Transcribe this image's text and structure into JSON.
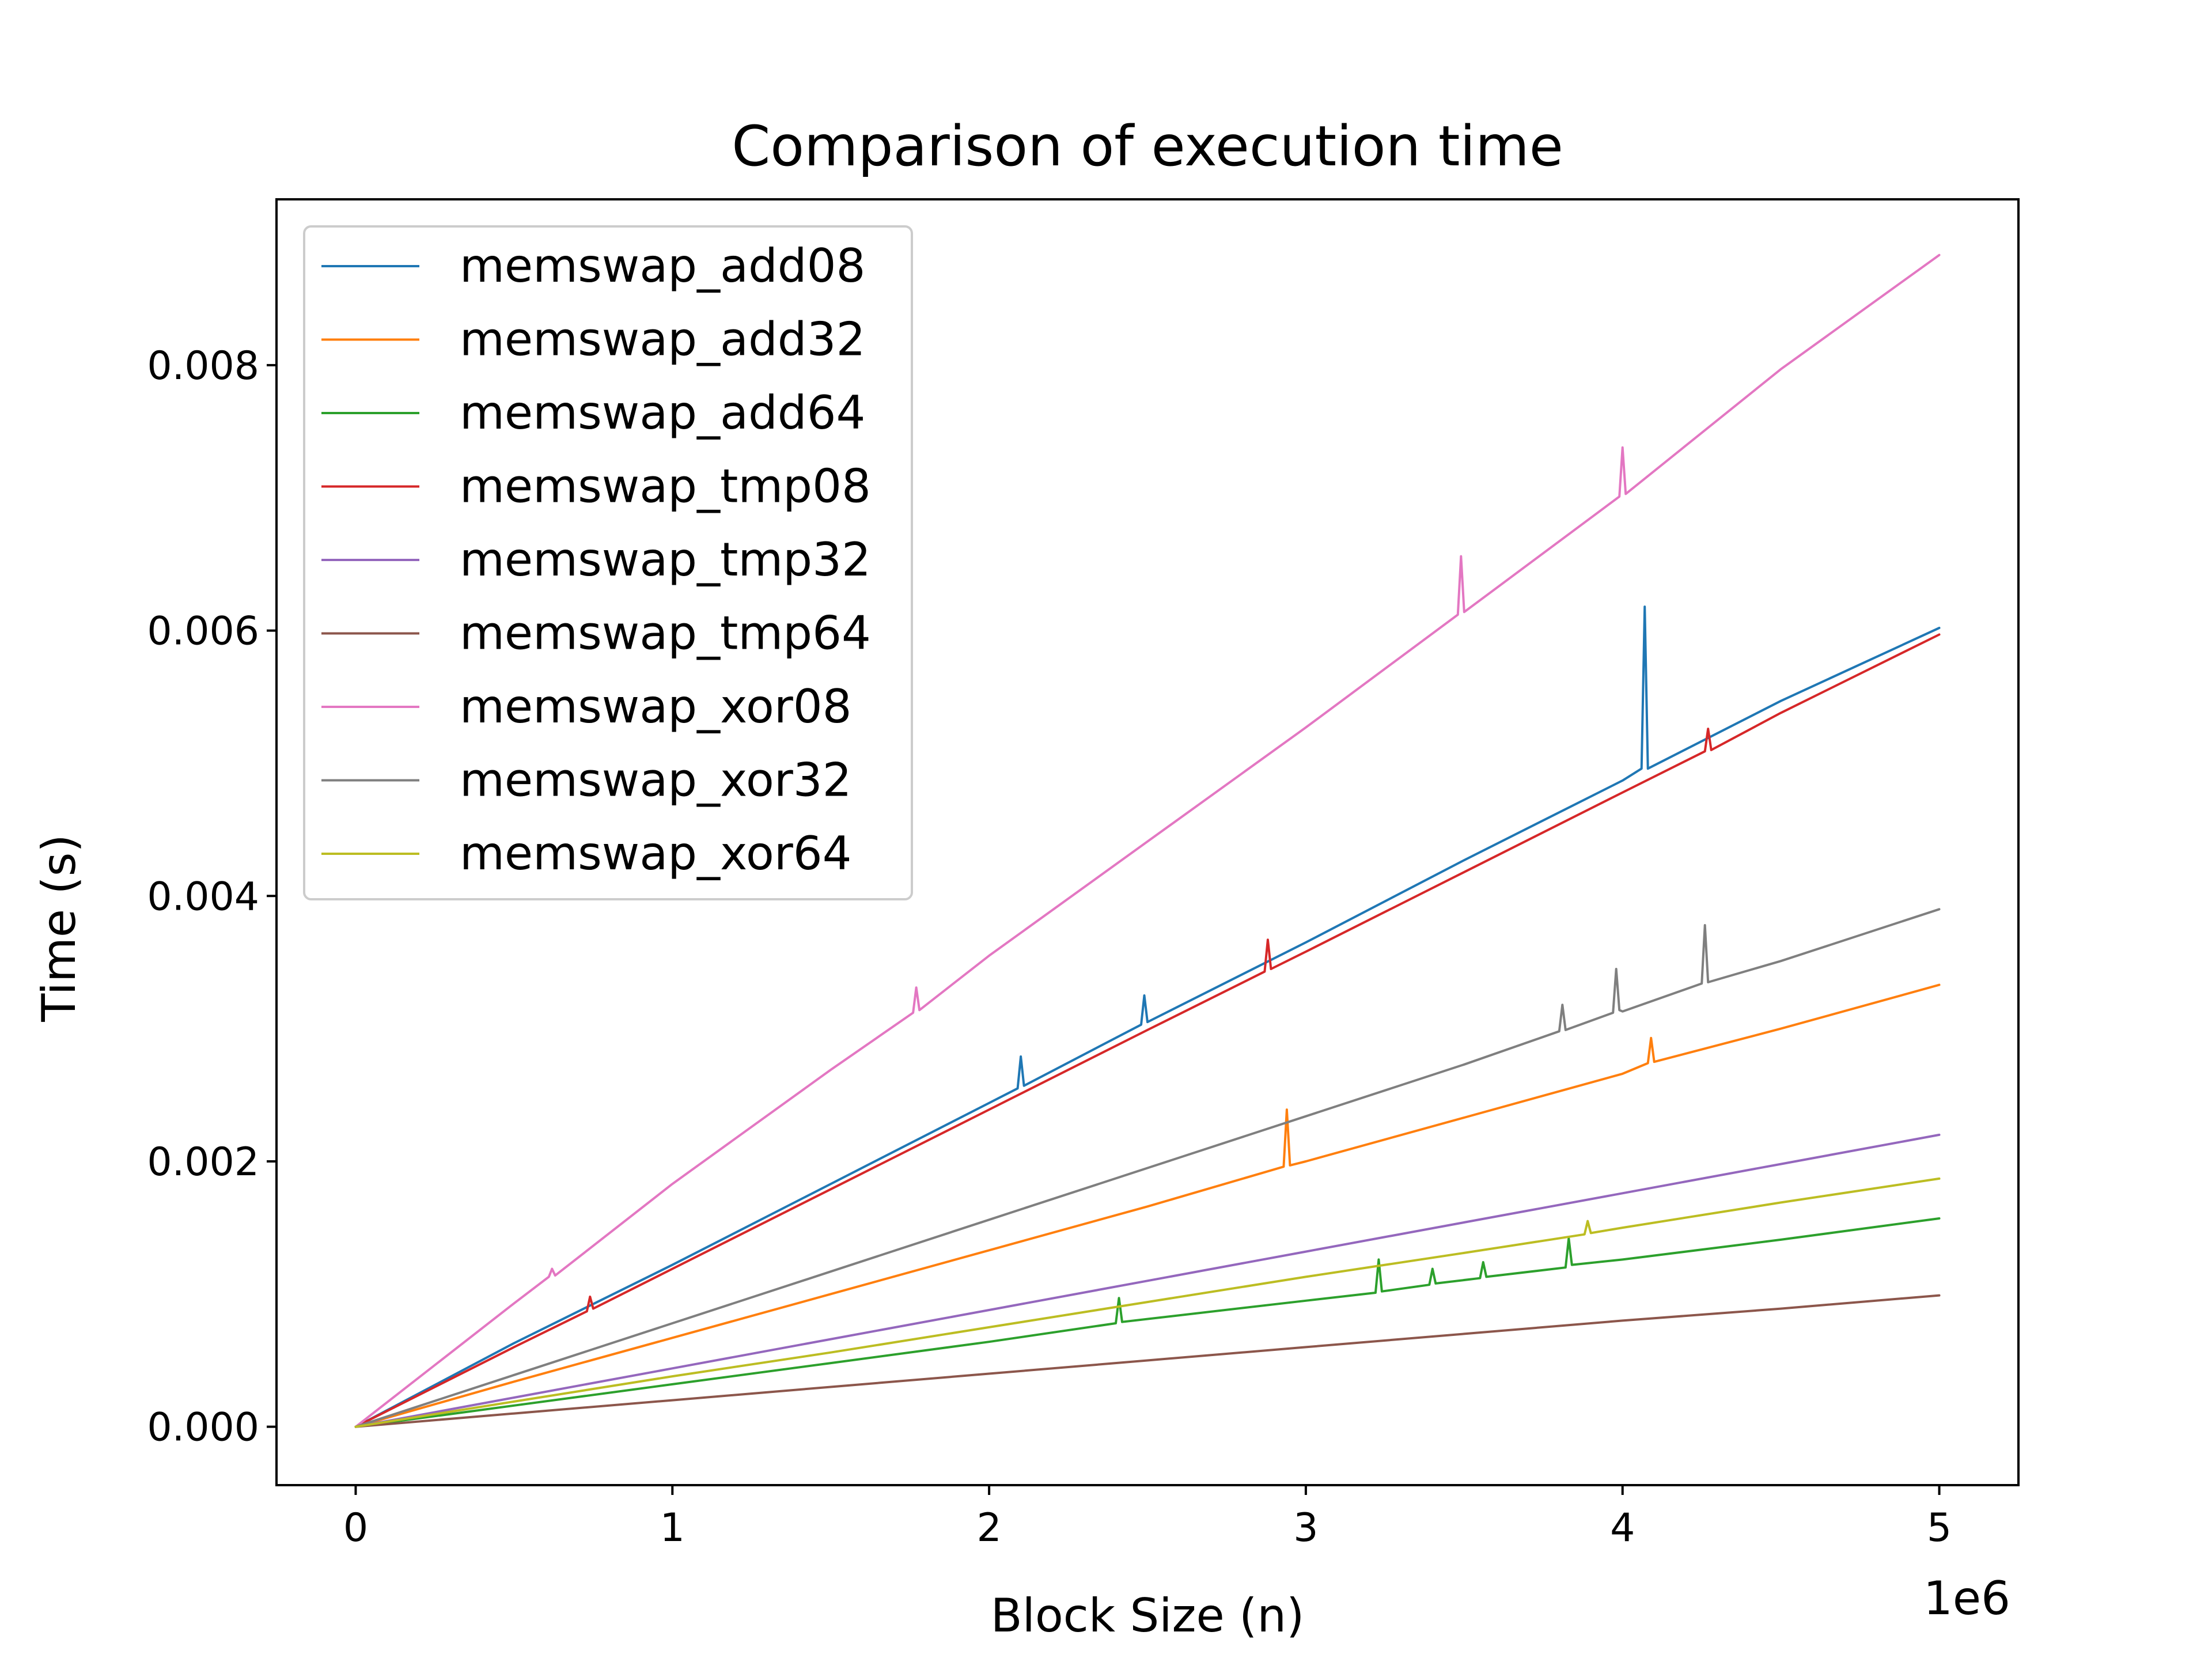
{
  "chart_data": {
    "type": "line",
    "title": "Comparison of execution time",
    "xlabel": "Block Size (n)",
    "ylabel": "Time (s)",
    "x_offset_label": "1e6",
    "xlim": [
      -250000,
      5250000
    ],
    "ylim": [
      -0.00044,
      0.00925
    ],
    "x_ticks": [
      0,
      1000000,
      2000000,
      3000000,
      4000000,
      5000000
    ],
    "x_tick_labels": [
      "0",
      "1",
      "2",
      "3",
      "4",
      "5"
    ],
    "y_ticks": [
      0.0,
      0.002,
      0.004,
      0.006,
      0.008
    ],
    "y_tick_labels": [
      "0.000",
      "0.002",
      "0.004",
      "0.006",
      "0.008"
    ],
    "grid": false,
    "legend_position": "top-left",
    "series": [
      {
        "name": "memswap_add08",
        "color": "#1f77b4",
        "x": [
          0,
          500000,
          1000000,
          1500000,
          2000000,
          2090000,
          2100000,
          2110000,
          2480000,
          2490000,
          2500000,
          3000000,
          3500000,
          4000000,
          4060000,
          4070000,
          4080000,
          4500000,
          5000000
        ],
        "y": [
          0.0,
          0.00063,
          0.00122,
          0.00183,
          0.00244,
          0.00255,
          0.00279,
          0.00257,
          0.00303,
          0.00325,
          0.00305,
          0.00365,
          0.00427,
          0.00487,
          0.00496,
          0.00618,
          0.00496,
          0.00547,
          0.00602
        ]
      },
      {
        "name": "memswap_add32",
        "color": "#ff7f0e",
        "x": [
          0,
          500000,
          1000000,
          1500000,
          2000000,
          2500000,
          2930000,
          2940000,
          2950000,
          3000000,
          3500000,
          4000000,
          4080000,
          4090000,
          4100000,
          4500000,
          5000000
        ],
        "y": [
          0.0,
          0.00034,
          0.00067,
          0.001,
          0.00133,
          0.00166,
          0.00196,
          0.00239,
          0.00197,
          0.002,
          0.00233,
          0.00266,
          0.00274,
          0.00293,
          0.00275,
          0.003,
          0.00333
        ]
      },
      {
        "name": "memswap_add64",
        "color": "#2ca02c",
        "x": [
          0,
          500000,
          1000000,
          1500000,
          2000000,
          2400000,
          2410000,
          2420000,
          3000000,
          3220000,
          3230000,
          3240000,
          3390000,
          3400000,
          3410000,
          3550000,
          3560000,
          3570000,
          3820000,
          3830000,
          3840000,
          4000000,
          4500000,
          5000000
        ],
        "y": [
          0.0,
          0.00016,
          0.00032,
          0.00048,
          0.00064,
          0.00078,
          0.00097,
          0.00079,
          0.00095,
          0.00101,
          0.00126,
          0.00102,
          0.00107,
          0.00119,
          0.00108,
          0.00112,
          0.00124,
          0.00113,
          0.0012,
          0.00142,
          0.00122,
          0.00126,
          0.00141,
          0.00157
        ]
      },
      {
        "name": "memswap_tmp08",
        "color": "#d62728",
        "x": [
          0,
          500000,
          730000,
          740000,
          750000,
          1000000,
          1500000,
          2000000,
          2500000,
          2870000,
          2880000,
          2890000,
          3000000,
          3500000,
          4000000,
          4260000,
          4270000,
          4280000,
          4500000,
          5000000
        ],
        "y": [
          0.0,
          0.0006,
          0.00087,
          0.00098,
          0.00089,
          0.00119,
          0.00179,
          0.00239,
          0.00299,
          0.00343,
          0.00367,
          0.00345,
          0.00358,
          0.00418,
          0.00478,
          0.00509,
          0.00526,
          0.0051,
          0.00538,
          0.00597
        ]
      },
      {
        "name": "memswap_tmp32",
        "color": "#9467bd",
        "x": [
          0,
          500000,
          1000000,
          1500000,
          2000000,
          2500000,
          3000000,
          3500000,
          4000000,
          4500000,
          5000000
        ],
        "y": [
          0.0,
          0.00022,
          0.00044,
          0.00066,
          0.00088,
          0.0011,
          0.00132,
          0.00154,
          0.00176,
          0.00198,
          0.0022
        ]
      },
      {
        "name": "memswap_tmp64",
        "color": "#8c564b",
        "x": [
          0,
          500000,
          1000000,
          1500000,
          2000000,
          2500000,
          3000000,
          3500000,
          4000000,
          4500000,
          5000000
        ],
        "y": [
          0.0,
          0.0001,
          0.0002,
          0.0003,
          0.0004,
          0.0005,
          0.0006,
          0.0007,
          0.0008,
          0.00089,
          0.00099
        ]
      },
      {
        "name": "memswap_xor08",
        "color": "#e377c2",
        "x": [
          0,
          500000,
          610000,
          620000,
          630000,
          1000000,
          1500000,
          1760000,
          1770000,
          1780000,
          2000000,
          2500000,
          3000000,
          3480000,
          3490000,
          3500000,
          3990000,
          4000000,
          4010000,
          4500000,
          5000000
        ],
        "y": [
          0.0,
          0.00093,
          0.00113,
          0.00119,
          0.00114,
          0.00183,
          0.00269,
          0.00312,
          0.00331,
          0.00314,
          0.00355,
          0.00441,
          0.00527,
          0.00612,
          0.00656,
          0.00614,
          0.00701,
          0.00738,
          0.00703,
          0.00797,
          0.00883
        ]
      },
      {
        "name": "memswap_xor32",
        "color": "#7f7f7f",
        "x": [
          0,
          500000,
          1000000,
          1500000,
          2000000,
          2500000,
          3000000,
          3500000,
          3800000,
          3810000,
          3820000,
          3970000,
          3980000,
          3990000,
          4000000,
          4250000,
          4260000,
          4270000,
          4500000,
          5000000
        ],
        "y": [
          0.0,
          0.00039,
          0.00078,
          0.00117,
          0.00156,
          0.00195,
          0.00234,
          0.00273,
          0.00298,
          0.00318,
          0.00299,
          0.00312,
          0.00345,
          0.00314,
          0.00313,
          0.00334,
          0.00378,
          0.00335,
          0.00351,
          0.0039
        ]
      },
      {
        "name": "memswap_xor64",
        "color": "#bcbd22",
        "x": [
          0,
          500000,
          1000000,
          1500000,
          2000000,
          2500000,
          3000000,
          3500000,
          3880000,
          3890000,
          3900000,
          4000000,
          4500000,
          5000000
        ],
        "y": [
          0.0,
          0.00019,
          0.00038,
          0.00056,
          0.00075,
          0.00094,
          0.00113,
          0.00131,
          0.00145,
          0.00155,
          0.00146,
          0.0015,
          0.00169,
          0.00187
        ]
      }
    ]
  }
}
